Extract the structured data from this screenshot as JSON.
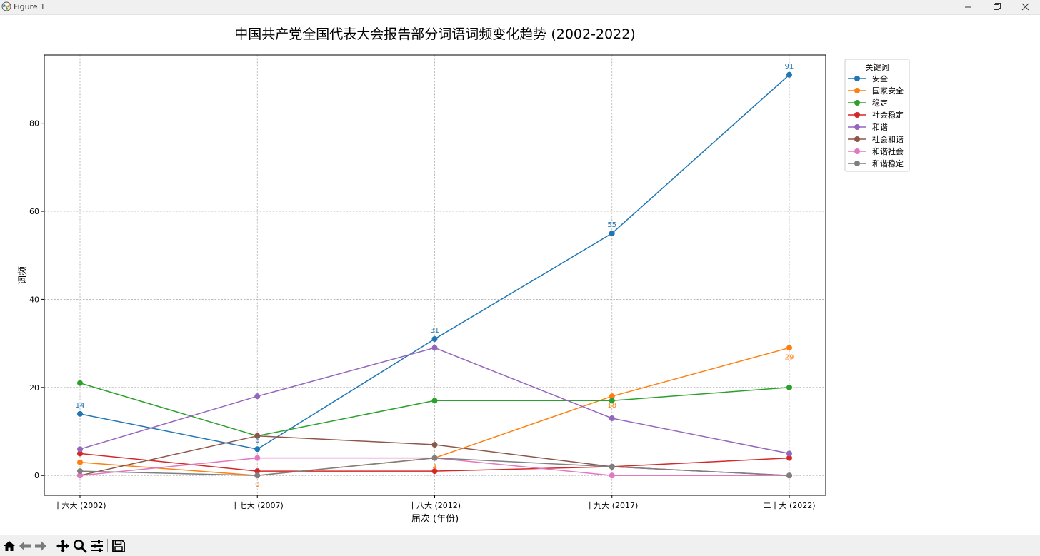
{
  "window": {
    "title": "Figure 1"
  },
  "toolbar": {
    "items": [
      "home-icon",
      "back-icon",
      "forward-icon",
      "pan-icon",
      "zoom-icon",
      "configure-icon",
      "save-icon"
    ]
  },
  "chart_data": {
    "type": "line",
    "title": "中国共产党全国代表大会报告部分词语词频变化趋势 (2002-2022)",
    "xlabel": "届次 (年份)",
    "ylabel": "词频",
    "categories": [
      "十六大 (2002)",
      "十七大 (2007)",
      "十八大 (2012)",
      "十九大 (2017)",
      "二十大 (2022)"
    ],
    "yticks": [
      0,
      20,
      40,
      60,
      80
    ],
    "ylim": [
      -4.5,
      95.5
    ],
    "grid": true,
    "legend": {
      "title": "关键词",
      "placement": "outside-upper-right"
    },
    "series": [
      {
        "name": "安全",
        "color": "#1f77b4",
        "values": [
          14,
          6,
          31,
          55,
          91
        ],
        "labels": [
          "14",
          "6",
          "31",
          "55",
          "91"
        ],
        "label_pos": "above"
      },
      {
        "name": "国家安全",
        "color": "#ff7f0e",
        "values": [
          3,
          0,
          4,
          18,
          29
        ],
        "labels": [
          "",
          "0",
          "4",
          "18",
          "29"
        ],
        "label_pos": "below"
      },
      {
        "name": "稳定",
        "color": "#2ca02c",
        "values": [
          21,
          9,
          17,
          17,
          20
        ]
      },
      {
        "name": "社会稳定",
        "color": "#d62728",
        "values": [
          5,
          1,
          1,
          2,
          4
        ]
      },
      {
        "name": "和谐",
        "color": "#9467bd",
        "values": [
          6,
          18,
          29,
          13,
          5
        ]
      },
      {
        "name": "社会和谐",
        "color": "#8c564b",
        "values": [
          0,
          9,
          7,
          2,
          0
        ]
      },
      {
        "name": "和谐社会",
        "color": "#e377c2",
        "values": [
          0,
          4,
          4,
          0,
          0
        ]
      },
      {
        "name": "和谐稳定",
        "color": "#7f7f7f",
        "values": [
          1,
          0,
          4,
          2,
          0
        ]
      }
    ]
  }
}
